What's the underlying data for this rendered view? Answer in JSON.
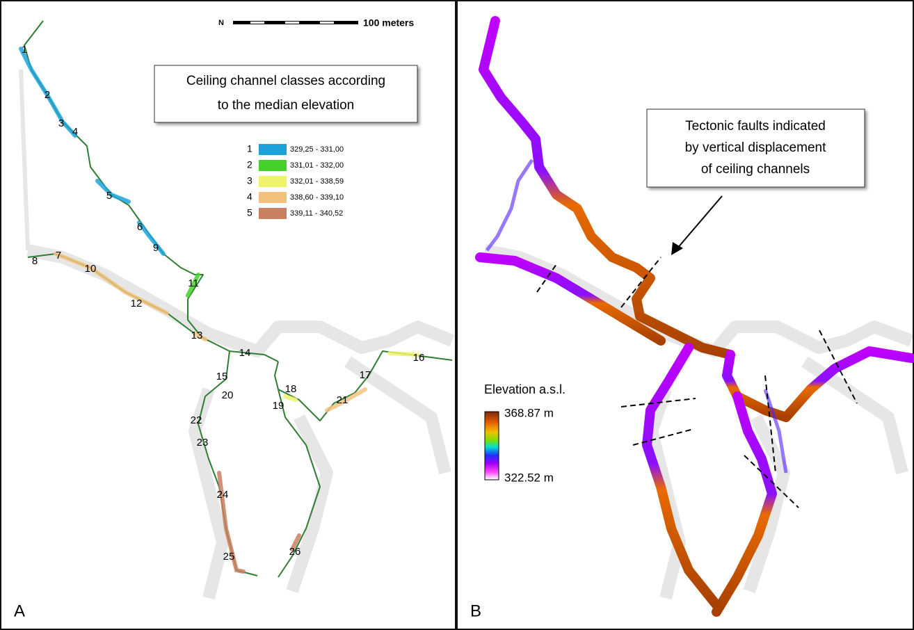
{
  "panels": {
    "a": {
      "label": "A",
      "scale_label": "100 meters",
      "north": "N",
      "title_box": [
        "Ceiling channel classes according",
        "to the median elevation"
      ],
      "legend": [
        {
          "class": "1",
          "range": "329,25 - 331,00",
          "color": "#1ba3d9"
        },
        {
          "class": "2",
          "range": "331,01 - 332,00",
          "color": "#44d12a"
        },
        {
          "class": "3",
          "range": "332,01 - 338,59",
          "color": "#eef36e"
        },
        {
          "class": "4",
          "range": "338,60 - 339,10",
          "color": "#f2c27d"
        },
        {
          "class": "5",
          "range": "339,11 - 340,52",
          "color": "#c98060"
        }
      ],
      "channel_labels": [
        "1",
        "2",
        "3",
        "4",
        "5",
        "6",
        "7",
        "8",
        "9",
        "10",
        "11",
        "12",
        "13",
        "14",
        "15",
        "16",
        "17",
        "18",
        "19",
        "20",
        "21",
        "22",
        "23",
        "24",
        "25",
        "26"
      ]
    },
    "b": {
      "label": "B",
      "annotation": [
        "Tectonic faults indicated",
        "by vertical displacement",
        "of ceiling channels"
      ],
      "colorbar": {
        "title": "Elevation a.s.l.",
        "max": "368.87 m",
        "min": "322.52 m"
      }
    }
  }
}
